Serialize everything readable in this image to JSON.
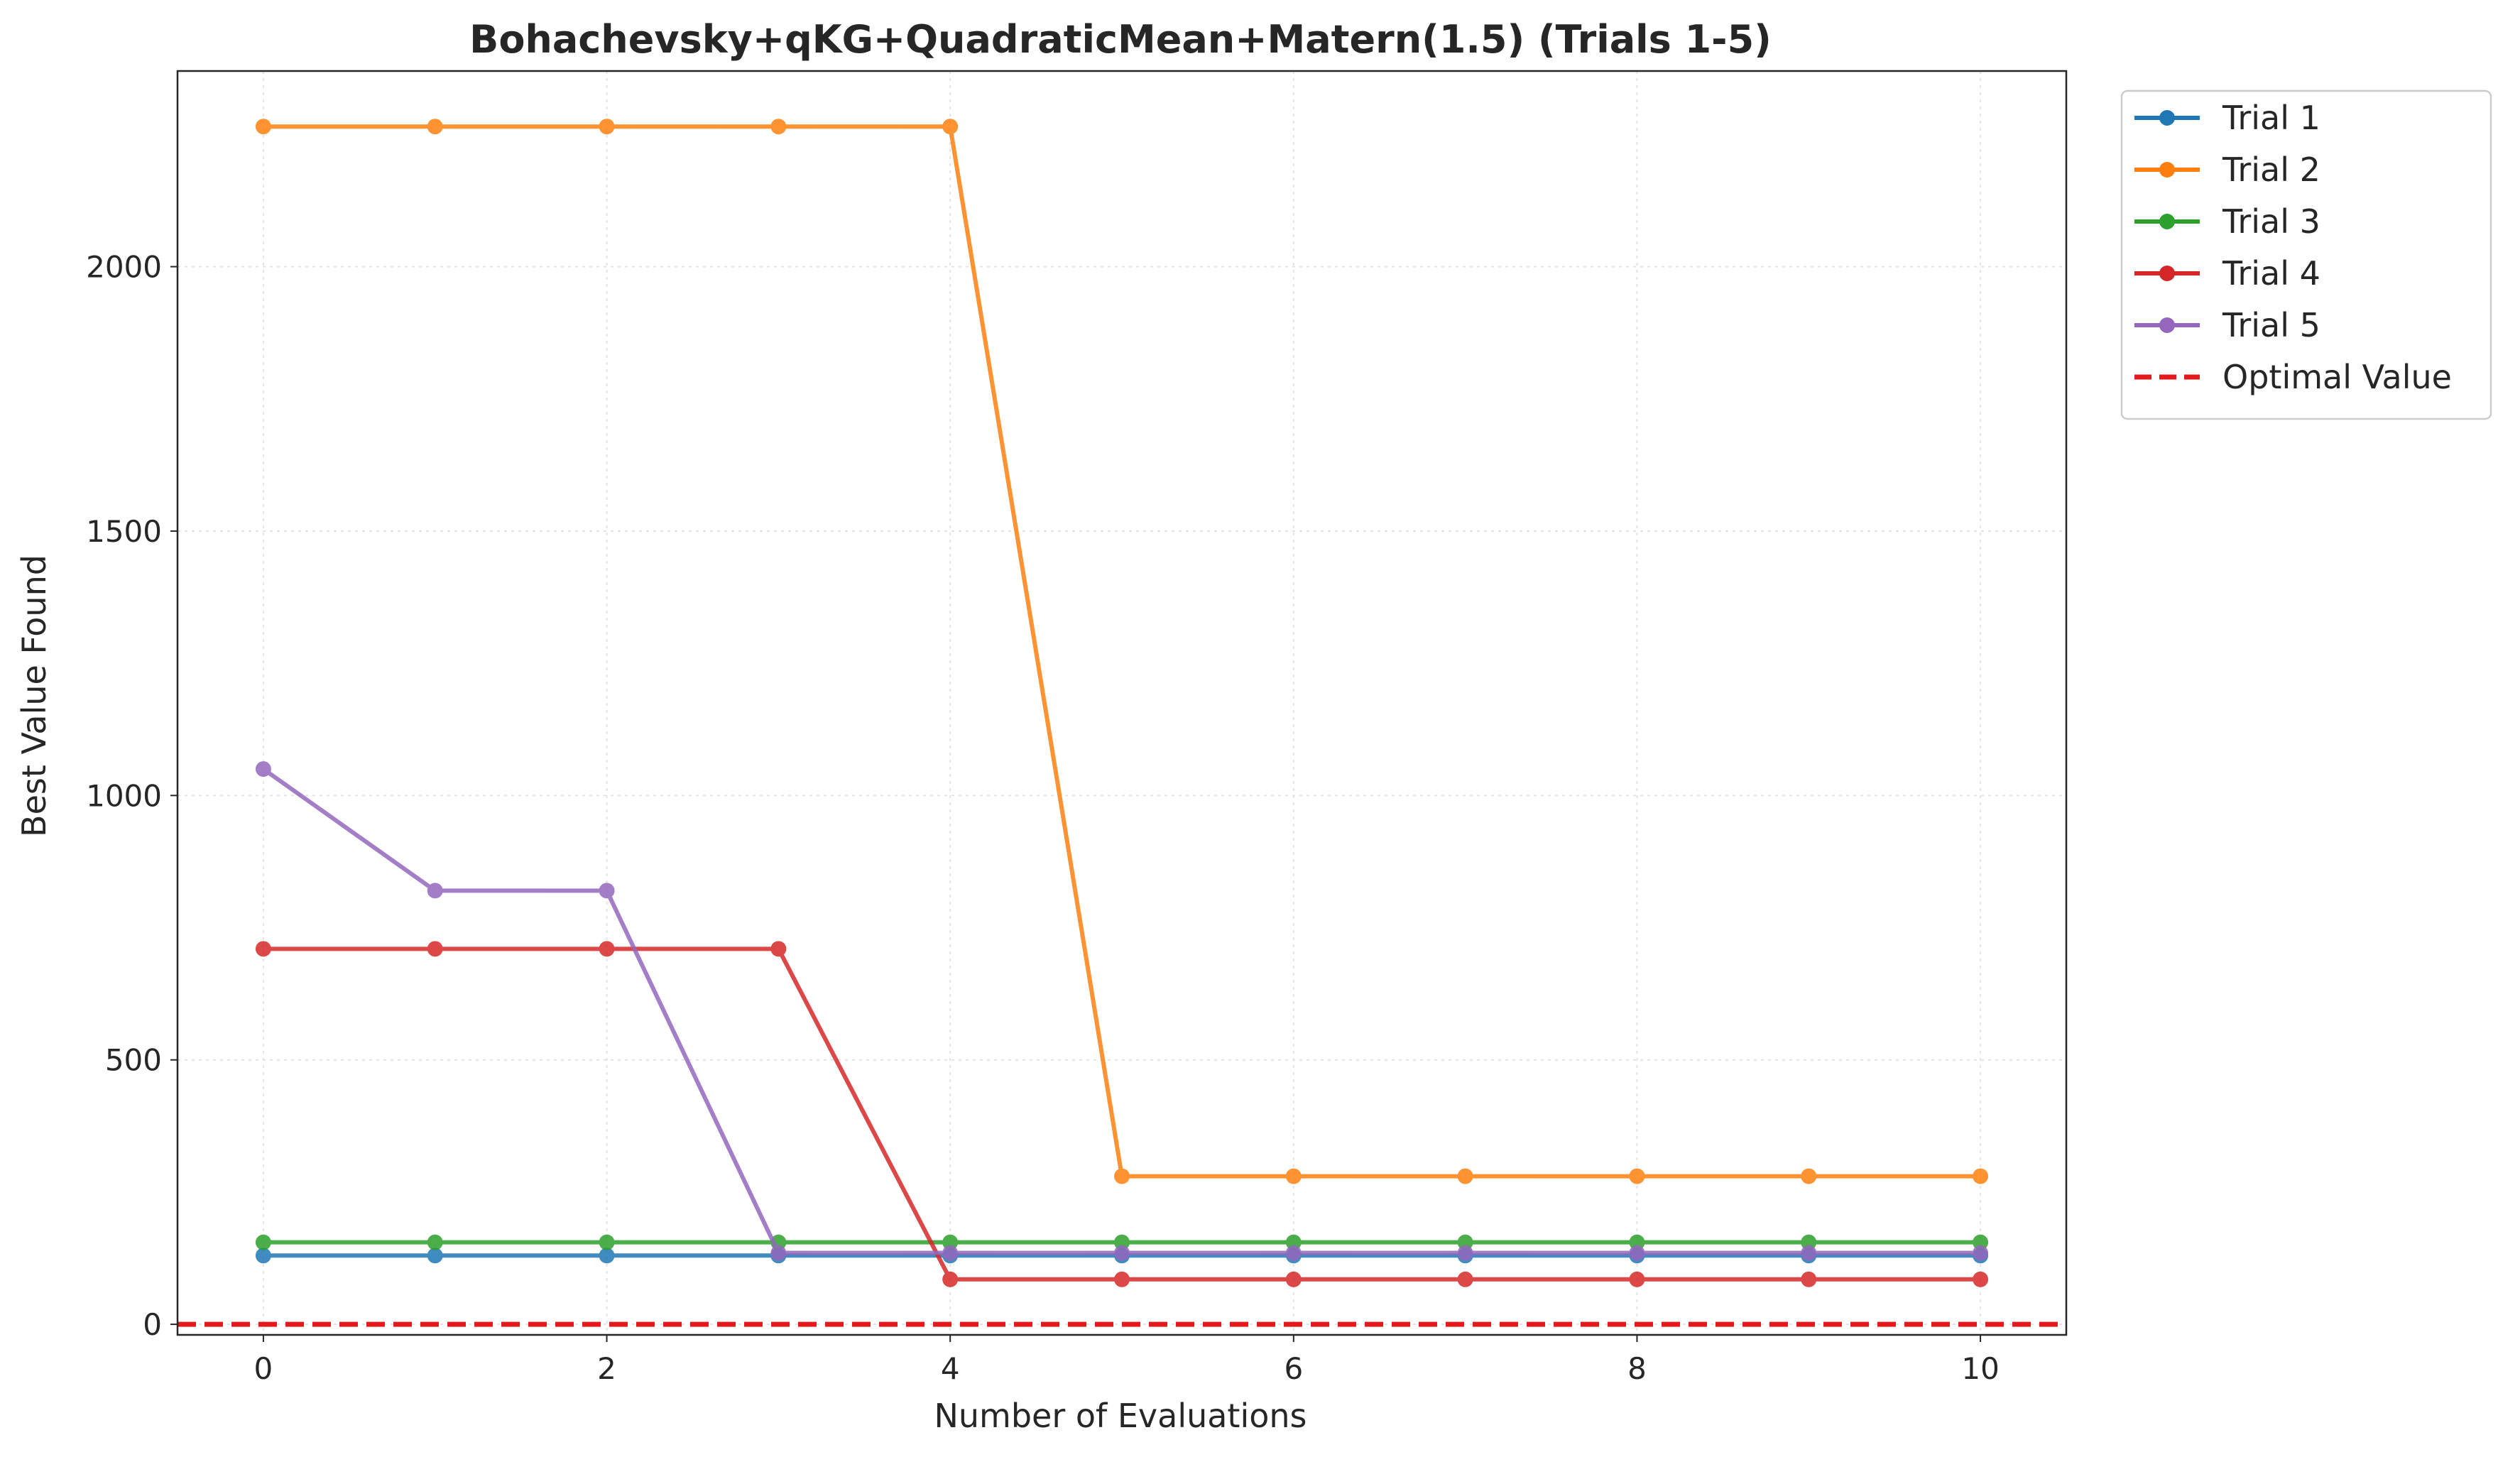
{
  "chart_data": {
    "type": "line",
    "title": "Bohachevsky+qKG+QuadraticMean+Matern(1.5) (Trials 1-5)",
    "xlabel": "Number of Evaluations",
    "ylabel": "Best Value Found",
    "xlim": [
      -0.5,
      10.5
    ],
    "ylim": [
      -20,
      2370
    ],
    "xticks": [
      0,
      2,
      4,
      6,
      8,
      10
    ],
    "yticks": [
      0,
      500,
      1000,
      1500,
      2000
    ],
    "grid": true,
    "legend_position": "outside-top-right",
    "x": [
      0,
      1,
      2,
      3,
      4,
      5,
      6,
      7,
      8,
      9,
      10
    ],
    "series": [
      {
        "name": "Trial 1",
        "color": "#1f77b4",
        "values": [
          130,
          130,
          130,
          130,
          130,
          130,
          130,
          130,
          130,
          130,
          130
        ]
      },
      {
        "name": "Trial 2",
        "color": "#ff7f0e",
        "values": [
          2265,
          2265,
          2265,
          2265,
          2265,
          280,
          280,
          280,
          280,
          280,
          280
        ]
      },
      {
        "name": "Trial 3",
        "color": "#2ca02c",
        "values": [
          155,
          155,
          155,
          155,
          155,
          155,
          155,
          155,
          155,
          155,
          155
        ]
      },
      {
        "name": "Trial 4",
        "color": "#d62728",
        "values": [
          710,
          710,
          710,
          710,
          85,
          85,
          85,
          85,
          85,
          85,
          85
        ]
      },
      {
        "name": "Trial 5",
        "color": "#9467bd",
        "values": [
          1050,
          820,
          820,
          135,
          135,
          135,
          135,
          135,
          135,
          135,
          135
        ]
      }
    ],
    "reference_line": {
      "name": "Optimal Value",
      "value": 0,
      "color": "#e31a1c",
      "style": "dashed"
    }
  }
}
